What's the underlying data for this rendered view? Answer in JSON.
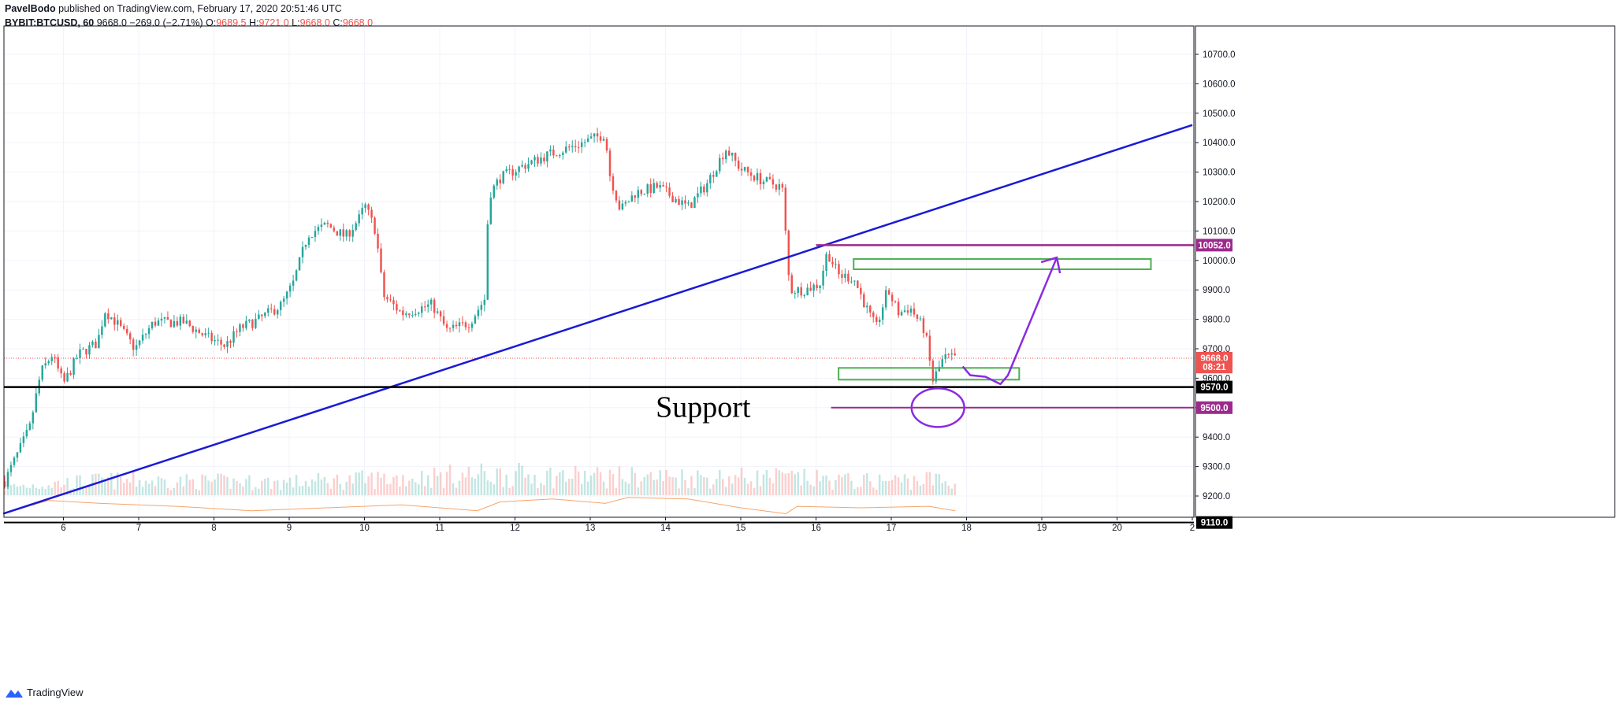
{
  "header": {
    "author": "PavelBodo",
    "published": "published on TradingView.com, February 17, 2020 20:51:46 UTC",
    "symbol": "BYBIT:BTCUSD, 60",
    "last": "9668.0",
    "change": "−269.0 (−2.71%)",
    "o_label": "O:",
    "o": "9689.5",
    "h_label": "H:",
    "h": "9721.0",
    "l_label": "L:",
    "l": "9668.0",
    "c_label": "C:",
    "c": "9668.0"
  },
  "footer": {
    "brand": "TradingView"
  },
  "colors": {
    "up": "#26a69a",
    "down": "#ef5350",
    "trendline": "#1a1ad6",
    "support_line": "#000000",
    "resistance_line": "#9c2a8c",
    "zone": "#4caf50",
    "annotation": "#8a2be2",
    "ma_line": "#f7a46b"
  },
  "chart_data": {
    "type": "candlestick",
    "title": "",
    "xlabel": "",
    "ylabel": "",
    "x_ticks": [
      "6",
      "7",
      "8",
      "9",
      "10",
      "11",
      "12",
      "13",
      "14",
      "15",
      "16",
      "17",
      "18",
      "19",
      "20",
      "2"
    ],
    "y_ticks": [
      "9200.0",
      "9300.0",
      "9400.0",
      "9500.0",
      "9600.0",
      "9700.0",
      "9800.0",
      "9900.0",
      "10000.0",
      "10100.0",
      "10200.0",
      "10300.0",
      "10400.0",
      "10500.0",
      "10600.0",
      "10700.0"
    ],
    "ylim": [
      9080,
      10720
    ],
    "xlim": [
      5.2,
      21.0
    ],
    "grid": true,
    "last_price": 9668.0,
    "countdown": "08:21",
    "anchors": [
      [
        5.22,
        9250
      ],
      [
        5.55,
        9430
      ],
      [
        5.7,
        9620
      ],
      [
        5.85,
        9680
      ],
      [
        6.0,
        9580
      ],
      [
        6.2,
        9680
      ],
      [
        6.45,
        9720
      ],
      [
        6.55,
        9830
      ],
      [
        6.7,
        9790
      ],
      [
        6.95,
        9700
      ],
      [
        7.2,
        9790
      ],
      [
        7.6,
        9790
      ],
      [
        7.9,
        9740
      ],
      [
        8.15,
        9710
      ],
      [
        8.35,
        9770
      ],
      [
        8.6,
        9800
      ],
      [
        8.9,
        9850
      ],
      [
        9.05,
        9920
      ],
      [
        9.25,
        10090
      ],
      [
        9.5,
        10120
      ],
      [
        9.75,
        10080
      ],
      [
        9.95,
        10150
      ],
      [
        10.0,
        10190
      ],
      [
        10.15,
        10100
      ],
      [
        10.25,
        9880
      ],
      [
        10.5,
        9820
      ],
      [
        10.9,
        9850
      ],
      [
        11.1,
        9760
      ],
      [
        11.4,
        9790
      ],
      [
        11.6,
        9870
      ],
      [
        11.65,
        10220
      ],
      [
        11.8,
        10280
      ],
      [
        12.1,
        10320
      ],
      [
        12.45,
        10360
      ],
      [
        12.8,
        10390
      ],
      [
        13.2,
        10430
      ],
      [
        13.25,
        10300
      ],
      [
        13.4,
        10170
      ],
      [
        13.6,
        10230
      ],
      [
        13.9,
        10250
      ],
      [
        14.3,
        10180
      ],
      [
        14.55,
        10260
      ],
      [
        14.8,
        10380
      ],
      [
        15.0,
        10310
      ],
      [
        15.3,
        10270
      ],
      [
        15.55,
        10250
      ],
      [
        15.65,
        9900
      ],
      [
        15.85,
        9900
      ],
      [
        16.05,
        9920
      ],
      [
        16.15,
        10030
      ],
      [
        16.3,
        9950
      ],
      [
        16.5,
        9940
      ],
      [
        16.7,
        9820
      ],
      [
        16.8,
        9770
      ],
      [
        16.95,
        9900
      ],
      [
        17.1,
        9820
      ],
      [
        17.25,
        9840
      ],
      [
        17.45,
        9760
      ],
      [
        17.55,
        9590
      ],
      [
        17.7,
        9670
      ],
      [
        17.85,
        9668
      ]
    ],
    "volume_anchors": [
      [
        5.2,
        0.18
      ],
      [
        6.5,
        0.32
      ],
      [
        9.0,
        0.28
      ],
      [
        11.6,
        0.45
      ],
      [
        13.3,
        0.4
      ],
      [
        15.6,
        0.38
      ],
      [
        16.6,
        0.3
      ],
      [
        17.6,
        0.35
      ],
      [
        17.85,
        0.2
      ]
    ],
    "volume_ma": [
      [
        5.2,
        9140
      ],
      [
        5.8,
        9185
      ],
      [
        6.5,
        9175
      ],
      [
        7.5,
        9165
      ],
      [
        8.5,
        9150
      ],
      [
        9.5,
        9160
      ],
      [
        10.5,
        9170
      ],
      [
        11.5,
        9150
      ],
      [
        11.8,
        9180
      ],
      [
        12.5,
        9190
      ],
      [
        13.2,
        9175
      ],
      [
        13.5,
        9195
      ],
      [
        14.3,
        9190
      ],
      [
        15.0,
        9160
      ],
      [
        15.6,
        9140
      ],
      [
        15.75,
        9165
      ],
      [
        16.6,
        9160
      ],
      [
        17.5,
        9165
      ],
      [
        17.85,
        9150
      ]
    ],
    "drawings": {
      "trendline": [
        [
          5.2,
          9140
        ],
        [
          21.0,
          10460
        ]
      ],
      "support_level": 9570,
      "support_label": "Support",
      "low_level": 9110,
      "resistance_level": 10052,
      "target_level": 9500,
      "zones": [
        {
          "x1": 16.5,
          "x2": 20.45,
          "y1": 9970,
          "y2": 10005
        },
        {
          "x1": 16.3,
          "x2": 18.7,
          "y1": 9595,
          "y2": 9635
        }
      ],
      "projection_arrow": [
        [
          17.95,
          9640
        ],
        [
          18.05,
          9610
        ],
        [
          18.25,
          9605
        ],
        [
          18.45,
          9580
        ],
        [
          18.55,
          9610
        ],
        [
          19.2,
          10010
        ]
      ],
      "circle": {
        "cx": 17.62,
        "cy": 9500,
        "rx": 0.35,
        "ry": 55
      }
    },
    "price_badges": [
      {
        "price": 10052,
        "label": "10052.0",
        "bg": "#9c2a8c"
      },
      {
        "price": 9668,
        "label": "9668.0",
        "bg": "#ef5350"
      },
      {
        "price": 9638,
        "label": "08:21",
        "bg": "#ef5350"
      },
      {
        "price": 9570,
        "label": "9570.0",
        "bg": "#000000"
      },
      {
        "price": 9500,
        "label": "9500.0",
        "bg": "#9c2a8c"
      },
      {
        "price": 9110,
        "label": "9110.0",
        "bg": "#000000"
      }
    ]
  }
}
